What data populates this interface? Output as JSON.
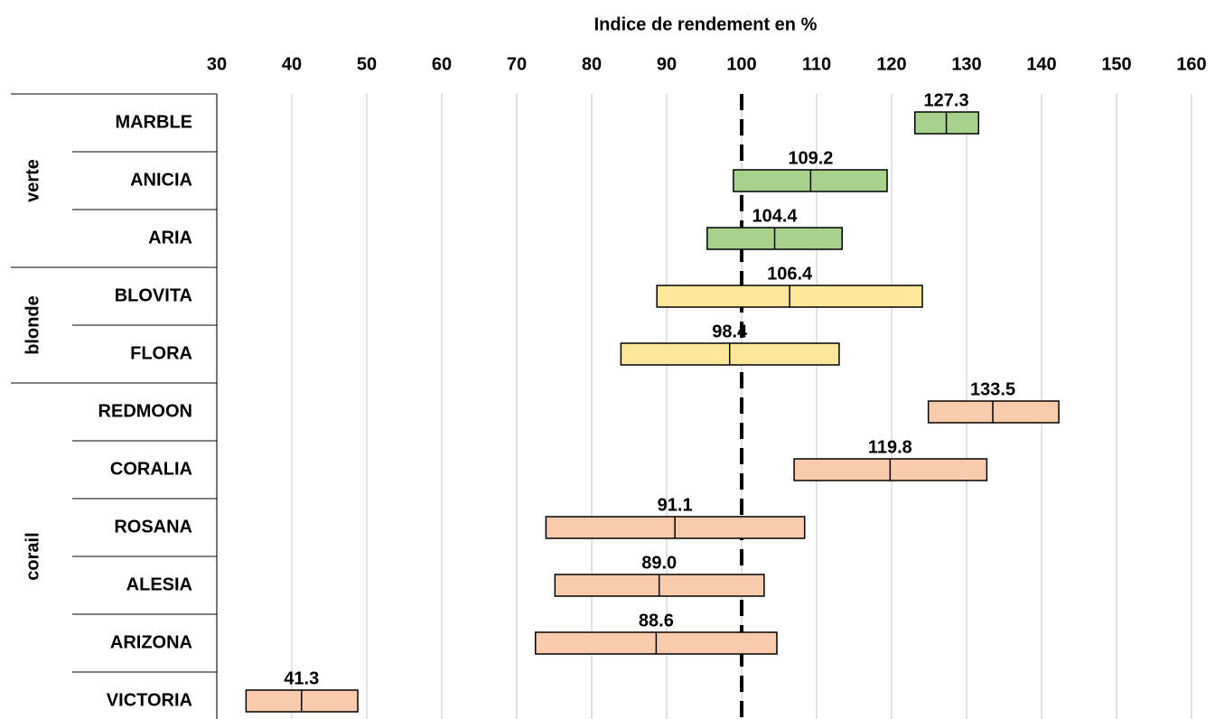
{
  "chart_data": {
    "type": "range_bar",
    "title": "Indice de rendement en %",
    "xlim": [
      30,
      160
    ],
    "xticks": [
      30,
      40,
      50,
      60,
      70,
      80,
      90,
      100,
      110,
      120,
      130,
      140,
      150,
      160
    ],
    "grid": true,
    "reference_line": 100,
    "groups": [
      {
        "name": "verte",
        "color": "#a9d18e",
        "categories": [
          "MARBLE",
          "ANICIA",
          "ARIA"
        ],
        "lows": [
          123.1,
          98.9,
          95.4
        ],
        "highs": [
          131.6,
          119.4,
          113.4
        ],
        "values": [
          127.3,
          109.2,
          104.4
        ],
        "value_labels": [
          "127.3",
          "109.2",
          "104.4"
        ]
      },
      {
        "name": "blonde",
        "color": "#ffe699",
        "categories": [
          "BLOVITA",
          "FLORA"
        ],
        "lows": [
          88.7,
          83.9
        ],
        "highs": [
          124.1,
          113.0
        ],
        "values": [
          106.4,
          98.4
        ],
        "value_labels": [
          "106.4",
          "98.4"
        ]
      },
      {
        "name": "corail",
        "color": "#f8cbad",
        "categories": [
          "REDMOON",
          "CORALIA",
          "ROSANA",
          "ALESIA",
          "ARIZONA",
          "VICTORIA"
        ],
        "lows": [
          124.9,
          107.0,
          73.9,
          75.1,
          72.5,
          33.9
        ],
        "highs": [
          142.3,
          132.7,
          108.4,
          103.0,
          104.7,
          48.8
        ],
        "values": [
          133.5,
          119.8,
          91.1,
          89.0,
          88.6,
          41.3
        ],
        "value_labels": [
          "133.5",
          "119.8",
          "91.1",
          "89.0",
          "88.6",
          "41.3"
        ]
      }
    ]
  }
}
